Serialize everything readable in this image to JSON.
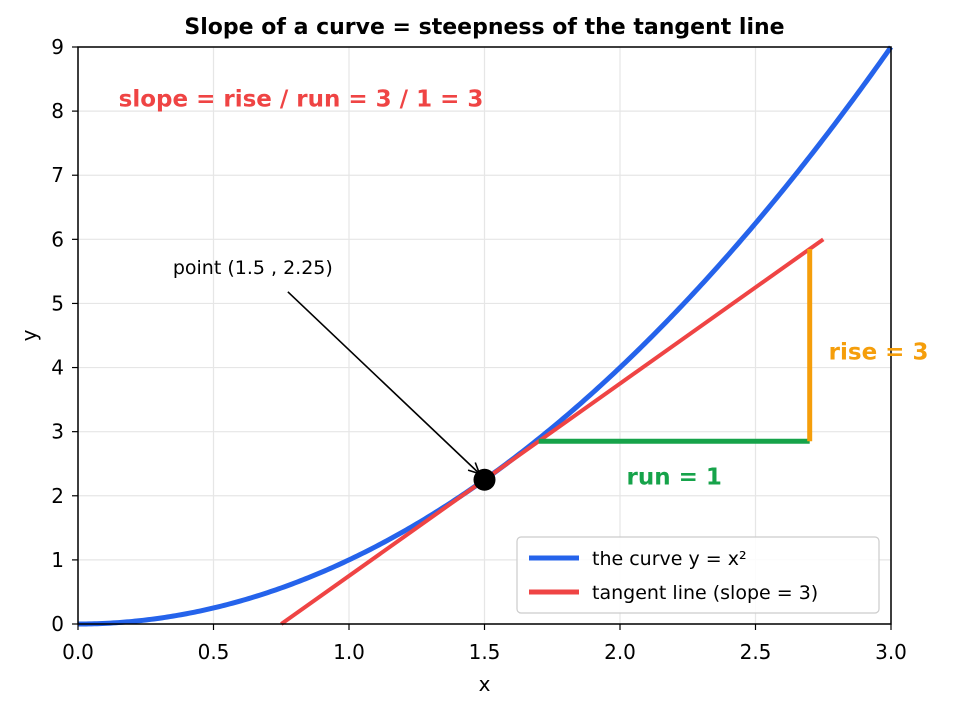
{
  "chart_data": {
    "type": "line",
    "title": "Slope of a curve = steepness of the tangent line",
    "xlabel": "x",
    "ylabel": "y",
    "xlim": [
      0,
      3
    ],
    "ylim": [
      0,
      9
    ],
    "x_ticks": [
      "0.0",
      "0.5",
      "1.0",
      "1.5",
      "2.0",
      "2.5",
      "3.0"
    ],
    "y_ticks": [
      "0",
      "1",
      "2",
      "3",
      "4",
      "5",
      "6",
      "7",
      "8",
      "9"
    ],
    "x_tick_values": [
      0,
      0.5,
      1.0,
      1.5,
      2.0,
      2.5,
      3.0
    ],
    "y_tick_values": [
      0,
      1,
      2,
      3,
      4,
      5,
      6,
      7,
      8,
      9
    ],
    "grid": true,
    "legend_position": "bottom-right",
    "series": [
      {
        "name": "the curve  y = x²",
        "color": "#2563eb",
        "function": "x^2",
        "x_range": [
          0,
          3
        ]
      },
      {
        "name": "tangent line  (slope = 3)",
        "color": "#ef4444",
        "function": "3x - 2.25",
        "x_range": [
          0.75,
          2.75
        ]
      }
    ],
    "point": {
      "x": 1.5,
      "y": 2.25,
      "label": "point (1.5 , 2.25)",
      "label_x": 0.35,
      "label_y": 5.4,
      "color": "#000000"
    },
    "run_segment": {
      "x1": 1.7,
      "x2": 2.7,
      "y": 2.85,
      "label": "run = 1",
      "label_x": 2.2,
      "label_y": 2.3,
      "color": "#16a34a"
    },
    "rise_segment": {
      "x": 2.7,
      "y1": 2.85,
      "y2": 5.85,
      "label": "rise = 3",
      "label_x": 2.77,
      "label_y": 4.25,
      "color": "#f59e0b"
    },
    "formula_annotation": {
      "text": "slope = rise / run = 3 / 1 = 3",
      "x": 0.15,
      "y": 8.2,
      "color": "#ef4444"
    }
  }
}
